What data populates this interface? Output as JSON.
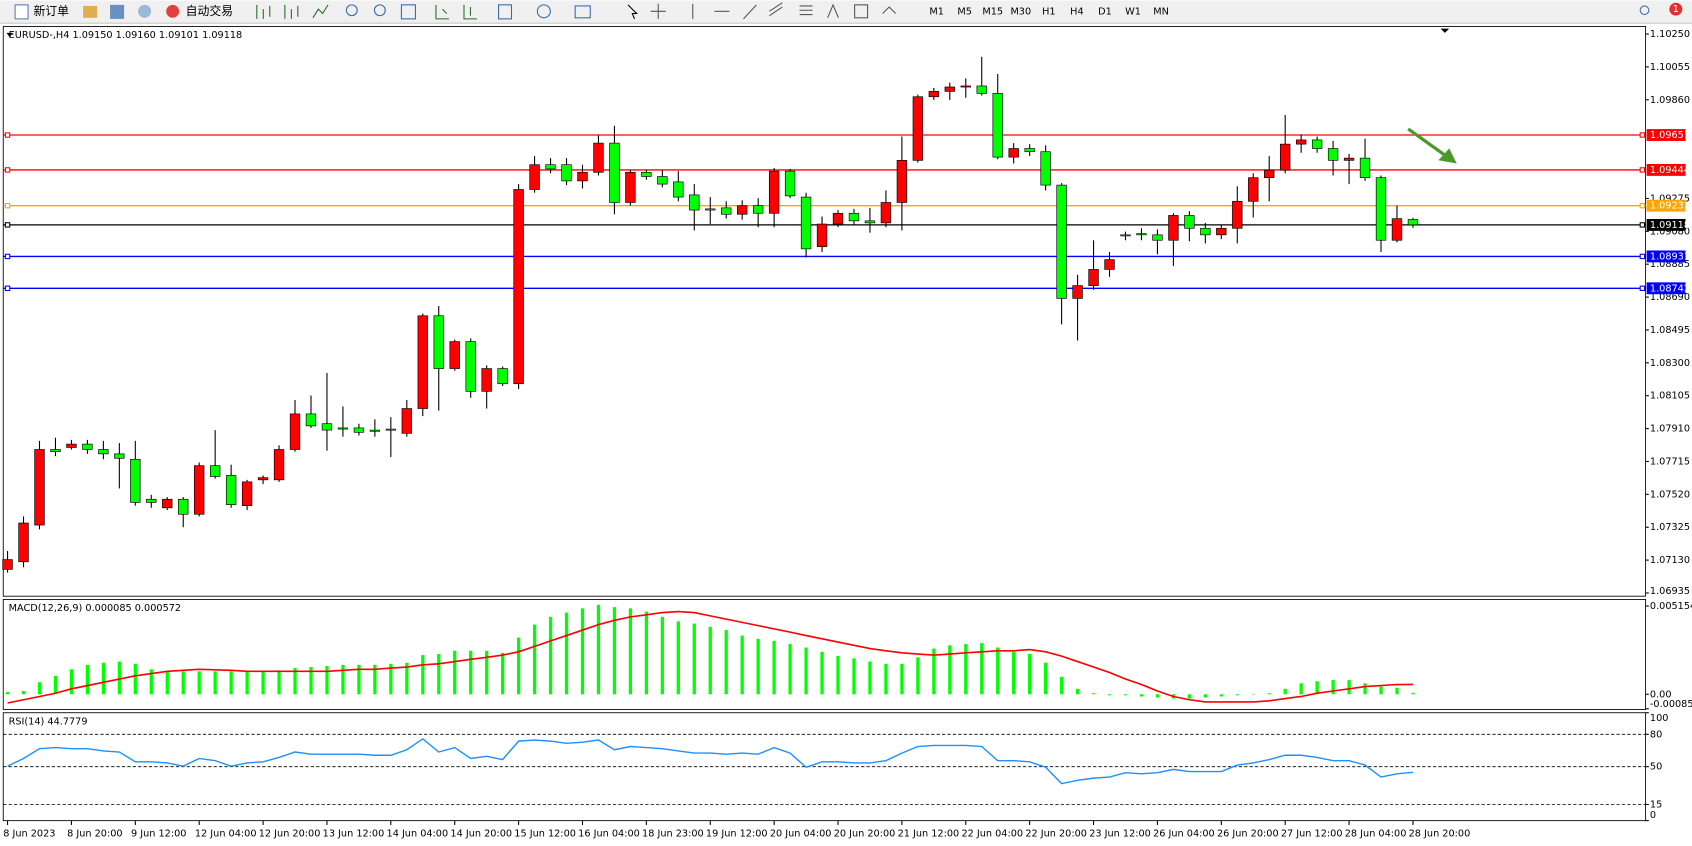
{
  "toolbar": {
    "new_order": "新订单",
    "auto_trading": "自动交易",
    "timeframes": [
      "M1",
      "M5",
      "M15",
      "M30",
      "H1",
      "H4",
      "D1",
      "W1",
      "MN"
    ],
    "badge": "1"
  },
  "chart_data": [
    {
      "type": "candlestick",
      "title": "EURUSD-,H4  1.09150 1.09160 1.09101 1.09118",
      "categories": [
        "8 Jun 2023",
        null,
        null,
        null,
        "8 Jun 20:00",
        null,
        null,
        null,
        "9 Jun 12:00",
        null,
        null,
        null,
        "12 Jun 04:00",
        null,
        null,
        null,
        "12 Jun 20:00",
        null,
        null,
        null,
        "13 Jun 12:00",
        null,
        null,
        null,
        "14 Jun 04:00",
        null,
        null,
        null,
        "14 Jun 20:00",
        null,
        null,
        null,
        "15 Jun 12:00",
        null,
        null,
        null,
        "16 Jun 04:00",
        null,
        null,
        null,
        "18 Jun 23:00",
        null,
        null,
        null,
        "19 Jun 12:00",
        null,
        null,
        null,
        "20 Jun 04:00",
        null,
        null,
        null,
        "20 Jun 20:00",
        null,
        null,
        null,
        "21 Jun 12:00",
        null,
        null,
        null,
        "22 Jun 04:00",
        null,
        null,
        null,
        "22 Jun 20:00",
        null,
        null,
        null,
        "23 Jun 12:00",
        null,
        null,
        null,
        "26 Jun 04:00",
        null,
        null,
        null,
        "26 Jun 20:00",
        null,
        null,
        null,
        "27 Jun 12:00",
        null,
        null,
        null,
        "28 Jun 04:00",
        null,
        null,
        null,
        "28 Jun 20:00"
      ],
      "open": [
        1.07075,
        1.0712,
        1.07338,
        1.07786,
        1.07798,
        1.07818,
        1.07786,
        1.0776,
        1.07728,
        1.07491,
        1.0744,
        1.07491,
        1.07402,
        1.0769,
        1.07632,
        1.07453,
        1.07606,
        1.07606,
        1.07786,
        1.07997,
        1.07939,
        1.07914,
        1.07914,
        1.07901,
        1.07907,
        1.07882,
        1.08029,
        1.08579,
        1.08266,
        1.08426,
        1.08131,
        1.08266,
        1.08176,
        1.09328,
        1.09475,
        1.09475,
        1.09379,
        1.0943,
        1.09603,
        1.09251,
        1.0943,
        1.09405,
        1.09373,
        1.09296,
        1.09213,
        1.09219,
        1.09181,
        1.09232,
        1.09187,
        1.09437,
        1.09283,
        1.08989,
        1.09123,
        1.09187,
        1.09142,
        1.0913,
        1.09251,
        1.09501,
        1.09878,
        1.0991,
        1.09936,
        1.09942,
        1.09898,
        1.0952,
        1.09571,
        1.09552,
        1.09354,
        1.08682,
        1.08758,
        1.08854,
        1.09059,
        1.09066,
        1.09059,
        1.09027,
        1.09174,
        1.09098,
        1.09059,
        1.09098,
        1.09258,
        1.09398,
        1.09443,
        1.09597,
        1.09622,
        1.09571,
        1.09501,
        1.09514,
        1.09398,
        1.09027,
        1.0915
      ],
      "high": [
        1.07184,
        1.07389,
        1.07837,
        1.07856,
        1.07843,
        1.07843,
        1.07837,
        1.07824,
        1.07837,
        1.07517,
        1.07504,
        1.07504,
        1.07709,
        1.07901,
        1.07696,
        1.07606,
        1.07632,
        1.07811,
        1.0808,
        1.08106,
        1.0824,
        1.08042,
        1.07939,
        1.07965,
        1.07978,
        1.0808,
        1.08592,
        1.08637,
        1.08438,
        1.08445,
        1.08285,
        1.08278,
        1.0936,
        1.09526,
        1.09514,
        1.09514,
        1.09475,
        1.09648,
        1.09706,
        1.09443,
        1.09443,
        1.09443,
        1.09437,
        1.0936,
        1.09283,
        1.09258,
        1.09264,
        1.09277,
        1.09456,
        1.0945,
        1.09309,
        1.09168,
        1.09206,
        1.09213,
        1.09219,
        1.09322,
        1.09642,
        1.09891,
        1.0993,
        1.09962,
        1.09987,
        1.10115,
        1.10013,
        1.09603,
        1.09597,
        1.0959,
        1.09366,
        1.08822,
        1.09027,
        1.08957,
        1.09078,
        1.09098,
        1.09091,
        1.09187,
        1.092,
        1.0913,
        1.09117,
        1.09347,
        1.09424,
        1.09526,
        1.0977,
        1.09654,
        1.09642,
        1.09616,
        1.09539,
        1.09629,
        1.09411,
        1.09232,
        1.0916
      ],
      "low": [
        1.07056,
        1.07088,
        1.07312,
        1.07747,
        1.07786,
        1.0776,
        1.07728,
        1.07555,
        1.07453,
        1.0744,
        1.07427,
        1.07325,
        1.07389,
        1.07613,
        1.0744,
        1.07427,
        1.07581,
        1.07594,
        1.07773,
        1.07914,
        1.07779,
        1.07862,
        1.07869,
        1.07862,
        1.07741,
        1.07862,
        1.07984,
        1.08016,
        1.08253,
        1.08093,
        1.08029,
        1.08163,
        1.08144,
        1.09309,
        1.09424,
        1.09354,
        1.09334,
        1.09411,
        1.09181,
        1.09232,
        1.09386,
        1.09341,
        1.09258,
        1.09085,
        1.09123,
        1.09155,
        1.09149,
        1.09104,
        1.09104,
        1.09277,
        1.08925,
        1.08957,
        1.09104,
        1.09117,
        1.09072,
        1.09104,
        1.09085,
        1.09488,
        1.09859,
        1.09859,
        1.09872,
        1.09885,
        1.09507,
        1.09482,
        1.09526,
        1.09322,
        1.08528,
        1.08432,
        1.08733,
        1.0881,
        1.09027,
        1.09027,
        1.08944,
        1.08874,
        1.09021,
        1.09008,
        1.09034,
        1.09008,
        1.09162,
        1.09258,
        1.09424,
        1.09546,
        1.09546,
        1.09411,
        1.0936,
        1.09379,
        1.08957,
        1.09014,
        1.09101
      ],
      "close": [
        1.07133,
        1.0735,
        1.07786,
        1.07773,
        1.07818,
        1.07786,
        1.0776,
        1.07734,
        1.07472,
        1.07472,
        1.07491,
        1.07402,
        1.0769,
        1.07626,
        1.07459,
        1.07594,
        1.07619,
        1.07786,
        1.07997,
        1.07926,
        1.07901,
        1.07907,
        1.07888,
        1.07894,
        1.07901,
        1.08029,
        1.08579,
        1.08266,
        1.08426,
        1.08131,
        1.08266,
        1.08176,
        1.09328,
        1.09475,
        1.0945,
        1.09379,
        1.0943,
        1.09603,
        1.09251,
        1.0943,
        1.09405,
        1.0936,
        1.09283,
        1.09206,
        1.09206,
        1.09181,
        1.09232,
        1.09187,
        1.09437,
        1.0929,
        1.08976,
        1.09123,
        1.09187,
        1.09142,
        1.0913,
        1.09251,
        1.09501,
        1.09878,
        1.0991,
        1.09936,
        1.09942,
        1.09898,
        1.0952,
        1.09571,
        1.09552,
        1.09354,
        1.08682,
        1.08758,
        1.08854,
        1.08912,
        1.09053,
        1.09059,
        1.09027,
        1.09174,
        1.09098,
        1.09059,
        1.09098,
        1.09258,
        1.09398,
        1.09443,
        1.09597,
        1.09622,
        1.09571,
        1.09501,
        1.09514,
        1.09398,
        1.09027,
        1.09155,
        1.09118
      ],
      "up_color": "#ff0000",
      "down_color": "#00ff00",
      "wick_color": "#000000",
      "ylim": [
        1.06916,
        1.10295
      ],
      "yticks": [
        {
          "value": 1.1025,
          "label": "1.10250"
        },
        1.10055,
        {
          "value": 1.0986,
          "label": "1.09860"
        },
        1.09275,
        {
          "value": 1.0908,
          "label": "1.09080"
        },
        1.08885,
        {
          "value": 1.0869,
          "label": "1.08690"
        },
        1.08495,
        {
          "value": 1.083,
          "label": "1.08300"
        },
        1.08105,
        {
          "value": 1.0791,
          "label": "1.07910"
        },
        1.07715,
        {
          "value": 1.0752,
          "label": "1.07520"
        },
        1.07325,
        {
          "value": 1.0713,
          "label": "1.07130"
        },
        1.06935
      ],
      "hlines": [
        {
          "value": 1.09651,
          "color": "#ff0000"
        },
        {
          "value": 1.09444,
          "color": "#ff0000"
        },
        {
          "value": 1.09232,
          "color": "#ffa500"
        },
        {
          "value": 1.09118,
          "color": "#000000"
        },
        {
          "value": 1.08931,
          "color": "#0000ff"
        },
        {
          "value": 1.08742,
          "color": "#0000ff"
        }
      ]
    },
    {
      "type": "macd",
      "title": "MACD(12,26,9) 0.000085 0.000572",
      "histogram": {
        "color": "#00ff00",
        "values": [
          0.00013,
          0.00019,
          0.0007,
          0.00108,
          0.00146,
          0.00172,
          0.00184,
          0.00191,
          0.00178,
          0.00146,
          0.00134,
          0.00134,
          0.00134,
          0.00134,
          0.00134,
          0.00134,
          0.00134,
          0.0014,
          0.00153,
          0.00159,
          0.00165,
          0.00172,
          0.00172,
          0.00172,
          0.00178,
          0.00184,
          0.00229,
          0.00235,
          0.00254,
          0.00254,
          0.00254,
          0.00242,
          0.00331,
          0.00407,
          0.00452,
          0.00477,
          0.00502,
          0.00522,
          0.00509,
          0.00502,
          0.00483,
          0.00452,
          0.00426,
          0.00413,
          0.00394,
          0.00375,
          0.00343,
          0.00324,
          0.00312,
          0.00293,
          0.00273,
          0.00248,
          0.00223,
          0.0021,
          0.00191,
          0.00178,
          0.00178,
          0.00216,
          0.00267,
          0.00286,
          0.00293,
          0.00299,
          0.00273,
          0.00248,
          0.00235,
          0.00184,
          0.00102,
          0.00032,
          6e-05,
          -6e-05,
          -6e-05,
          -0.00013,
          -0.00019,
          -0.00025,
          -0.00025,
          -0.00019,
          -0.00013,
          -6e-05,
          2e-05,
          6e-05,
          0.00032,
          0.00064,
          0.00076,
          0.00083,
          0.00083,
          0.00064,
          0.00045,
          0.00038,
          8.5e-05
        ]
      },
      "signal": {
        "color": "#ff0000",
        "values": [
          -0.00051,
          -0.00032,
          -0.00013,
          6e-05,
          0.00032,
          0.00051,
          0.0007,
          0.00089,
          0.00108,
          0.00121,
          0.00134,
          0.0014,
          0.00146,
          0.00143,
          0.0014,
          0.00134,
          0.00134,
          0.00134,
          0.00134,
          0.00134,
          0.00134,
          0.0014,
          0.00146,
          0.00146,
          0.00153,
          0.00159,
          0.00172,
          0.00178,
          0.00191,
          0.00204,
          0.00216,
          0.00229,
          0.00248,
          0.0028,
          0.00312,
          0.00343,
          0.00375,
          0.00407,
          0.00432,
          0.00452,
          0.00464,
          0.00477,
          0.00483,
          0.00477,
          0.00458,
          0.00439,
          0.0042,
          0.00401,
          0.00382,
          0.00363,
          0.00343,
          0.00324,
          0.00305,
          0.00286,
          0.00267,
          0.00254,
          0.00242,
          0.00235,
          0.00229,
          0.00235,
          0.00242,
          0.00248,
          0.00254,
          0.00254,
          0.00261,
          0.00248,
          0.00223,
          0.00191,
          0.00159,
          0.00127,
          0.00089,
          0.00057,
          0.00019,
          -0.00013,
          -0.00032,
          -0.00045,
          -0.00045,
          -0.00045,
          -0.00045,
          -0.00038,
          -0.00025,
          -0.00013,
          6e-05,
          0.00019,
          0.00032,
          0.00045,
          0.00051,
          0.00057,
          0.000572
        ]
      },
      "ylim": [
        -0.00089,
        0.00554
      ],
      "yticks": [
        0.005154,
        {
          "value": 0,
          "label": "0.00"
        },
        -0.00085
      ]
    },
    {
      "type": "rsi",
      "title": "RSI(14) 44.7779",
      "color": "#1e90ff",
      "values": [
        50.5,
        57.6,
        66.7,
        67.7,
        66.7,
        66.7,
        64.6,
        63.6,
        54.5,
        54.5,
        53.5,
        50.5,
        57.6,
        55.6,
        50.5,
        53.5,
        54.5,
        58.6,
        63.6,
        61.6,
        61.6,
        61.6,
        61.6,
        60.6,
        60.6,
        65.7,
        75.8,
        63.6,
        67.7,
        57.6,
        59.6,
        56.6,
        73.7,
        74.7,
        73.7,
        71.7,
        72.7,
        74.7,
        65.7,
        68.7,
        67.7,
        66.7,
        64.6,
        62.6,
        62.6,
        61.6,
        62.6,
        61.6,
        67.7,
        62.6,
        49.5,
        54.5,
        54.5,
        53.5,
        53.5,
        55.6,
        62.6,
        68.7,
        69.7,
        69.7,
        69.7,
        68.7,
        55.6,
        55.6,
        54.5,
        49.5,
        34.3,
        37.4,
        39.4,
        40.4,
        44.4,
        43.4,
        44.4,
        47.5,
        45.5,
        45.5,
        45.5,
        51.5,
        53.5,
        56.6,
        60.6,
        60.6,
        58.6,
        55.6,
        55.6,
        51.5,
        40.4,
        43.4,
        44.7779
      ],
      "ylim": [
        0,
        100
      ],
      "yticks": [
        100,
        80,
        50,
        15,
        0
      ],
      "levels": [
        80,
        50,
        15
      ]
    }
  ]
}
